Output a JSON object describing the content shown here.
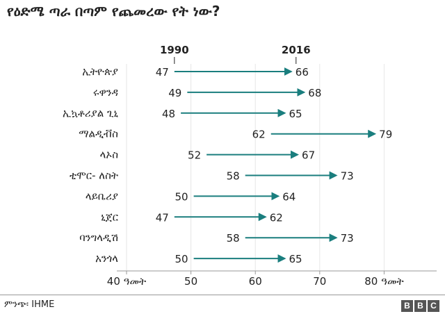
{
  "title": "የዕድሜ ጣራ በጣም የጨመረው የት ነው?",
  "source": "ምንጭ፡ IHME",
  "logo": [
    "B",
    "B",
    "C"
  ],
  "colors": {
    "arrow": "#1a7e7e",
    "text": "#222222",
    "axis": "#999999",
    "grid": "#e6e6e6"
  },
  "chart_data": {
    "type": "dumbbell-arrow",
    "series": [
      {
        "name": "1990"
      },
      {
        "name": "2016"
      }
    ],
    "categories": [
      "ኢትዮጵያ",
      "ሩዋንዳ",
      "ኢኳቶሪያል ጊኒ",
      "ማልዲቭስ",
      "ላኦስ",
      "ቲሞር- ለስት",
      "ላይቤሪያ",
      "ኒጀር",
      "ባንግላዲሽ",
      "አንጎላ"
    ],
    "values_1990": [
      47,
      49,
      48,
      62,
      52,
      58,
      50,
      47,
      58,
      50
    ],
    "values_2016": [
      66,
      68,
      65,
      79,
      67,
      73,
      64,
      62,
      73,
      65
    ],
    "x_ticks": [
      40,
      50,
      60,
      70,
      80
    ],
    "x_tick_labels": [
      "40 ዓመት",
      "50",
      "60",
      "70",
      "80 ዓመት"
    ],
    "xlim": [
      40,
      86
    ]
  }
}
